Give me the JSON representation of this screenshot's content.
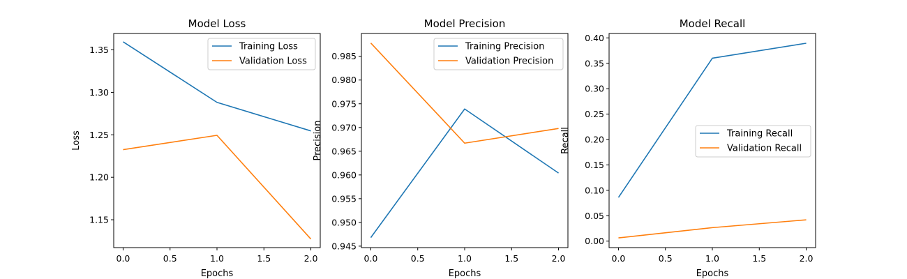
{
  "colors": {
    "training": "#1f77b4",
    "validation": "#ff7f0e"
  },
  "chart_data": [
    {
      "type": "line",
      "title": "Model Loss",
      "xlabel": "Epochs",
      "ylabel": "Loss",
      "xlim": [
        -0.1,
        2.1
      ],
      "ylim": [
        1.1172,
        1.3693
      ],
      "xticks": [
        0.0,
        0.5,
        1.0,
        1.5,
        2.0
      ],
      "xtick_labels": [
        "0.0",
        "0.5",
        "1.0",
        "1.5",
        "2.0"
      ],
      "yticks": [
        1.15,
        1.2,
        1.25,
        1.3,
        1.35
      ],
      "ytick_labels": [
        "1.15",
        "1.20",
        "1.25",
        "1.30",
        "1.35"
      ],
      "legend_position": "upper right",
      "grid": false,
      "series": [
        {
          "name": "Training Loss",
          "x": [
            0,
            1,
            2
          ],
          "y": [
            1.3595,
            1.2882,
            1.2546
          ]
        },
        {
          "name": "Validation Loss",
          "x": [
            0,
            1,
            2
          ],
          "y": [
            1.2325,
            1.2494,
            1.1273
          ]
        }
      ]
    },
    {
      "type": "line",
      "title": "Model Precision",
      "xlabel": "Epochs",
      "ylabel": "Precision",
      "xlim": [
        -0.1,
        2.1
      ],
      "ylim": [
        0.94469,
        0.98981
      ],
      "xticks": [
        0.0,
        0.5,
        1.0,
        1.5,
        2.0
      ],
      "xtick_labels": [
        "0.0",
        "0.5",
        "1.0",
        "1.5",
        "2.0"
      ],
      "yticks": [
        0.945,
        0.95,
        0.955,
        0.96,
        0.965,
        0.97,
        0.975,
        0.98,
        0.985
      ],
      "ytick_labels": [
        "0.945",
        "0.950",
        "0.955",
        "0.960",
        "0.965",
        "0.970",
        "0.975",
        "0.980",
        "0.985"
      ],
      "legend_position": "upper right",
      "grid": false,
      "series": [
        {
          "name": "Training Precision",
          "x": [
            0,
            1,
            2
          ],
          "y": [
            0.9468,
            0.9739,
            0.9604
          ]
        },
        {
          "name": "Validation Precision",
          "x": [
            0,
            1,
            2
          ],
          "y": [
            0.9878,
            0.9667,
            0.9698
          ]
        }
      ]
    },
    {
      "type": "line",
      "title": "Model Recall",
      "xlabel": "Epochs",
      "ylabel": "Recall",
      "xlim": [
        -0.1,
        2.1
      ],
      "ylim": [
        -0.0128,
        0.4087
      ],
      "xticks": [
        0.0,
        0.5,
        1.0,
        1.5,
        2.0
      ],
      "xtick_labels": [
        "0.0",
        "0.5",
        "1.0",
        "1.5",
        "2.0"
      ],
      "yticks": [
        0.0,
        0.05,
        0.1,
        0.15,
        0.2,
        0.25,
        0.3,
        0.35,
        0.4
      ],
      "ytick_labels": [
        "0.00",
        "0.05",
        "0.10",
        "0.15",
        "0.20",
        "0.25",
        "0.30",
        "0.35",
        "0.40"
      ],
      "legend_position": "center right",
      "grid": false,
      "series": [
        {
          "name": "Training Recall",
          "x": [
            0,
            1,
            2
          ],
          "y": [
            0.086,
            0.36,
            0.3895
          ]
        },
        {
          "name": "Validation Recall",
          "x": [
            0,
            1,
            2
          ],
          "y": [
            0.0063,
            0.0265,
            0.0419
          ]
        }
      ]
    }
  ]
}
